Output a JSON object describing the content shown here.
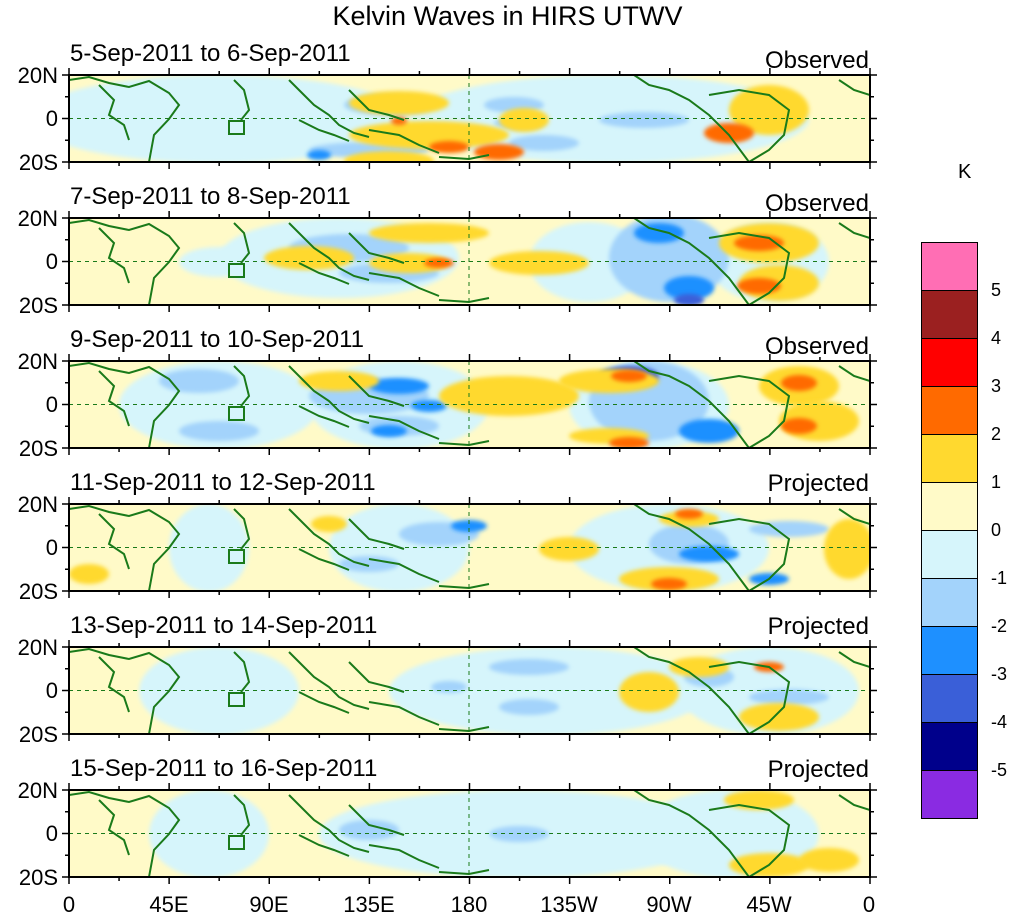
{
  "title": "Kelvin Waves in HIRS UTWV",
  "panels": [
    {
      "date": "5-Sep-2011 to 6-Sep-2011",
      "kind": "Observed"
    },
    {
      "date": "7-Sep-2011 to 8-Sep-2011",
      "kind": "Observed"
    },
    {
      "date": "9-Sep-2011 to 10-Sep-2011",
      "kind": "Observed"
    },
    {
      "date": "11-Sep-2011 to 12-Sep-2011",
      "kind": "Projected"
    },
    {
      "date": "13-Sep-2011 to 14-Sep-2011",
      "kind": "Projected"
    },
    {
      "date": "15-Sep-2011 to 16-Sep-2011",
      "kind": "Projected"
    }
  ],
  "lat_labels": [
    "20N",
    "0",
    "20S"
  ],
  "lon_labels": [
    "0",
    "45E",
    "90E",
    "135E",
    "180",
    "135W",
    "90W",
    "45W",
    "0"
  ],
  "colorbar": {
    "units": "K",
    "labels": [
      "5",
      "4",
      "3",
      "2",
      "1",
      "0",
      "-1",
      "-2",
      "-3",
      "-4",
      "-5"
    ],
    "colors": [
      "#ff6eb4",
      "#9b2020",
      "#ff0000",
      "#ff6a00",
      "#ffd92f",
      "#fffac8",
      "#d6f5fb",
      "#a3d3fb",
      "#1e90ff",
      "#3a5fd8",
      "#00008b",
      "#8a2be2"
    ]
  },
  "colors": {
    "coast": "#1a7a1a",
    "grid": "#1a7a1a",
    "frame": "#000000"
  }
}
